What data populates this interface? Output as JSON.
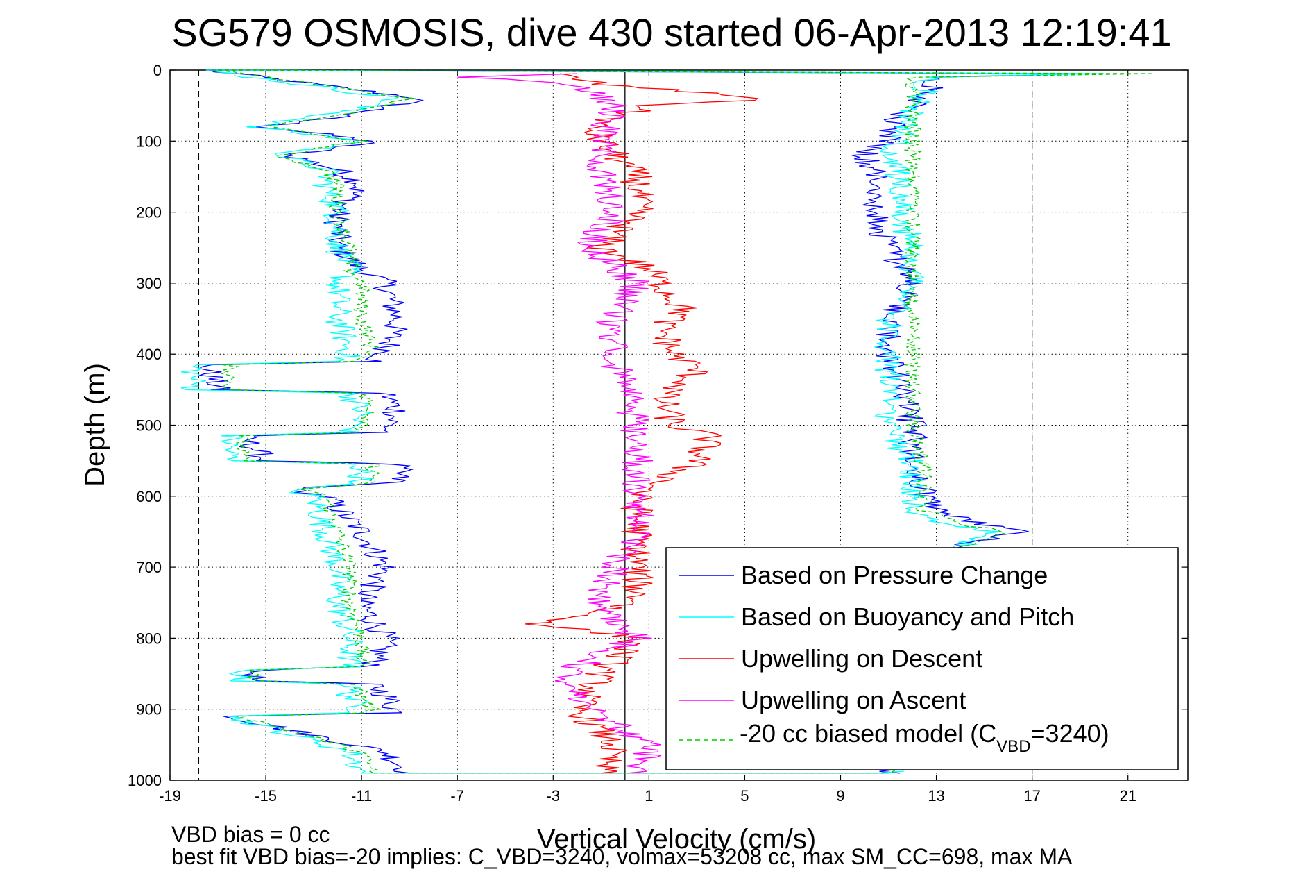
{
  "chart_data": {
    "type": "line",
    "title": "SG579 OSMOSIS, dive 430 started 06-Apr-2013 12:19:41",
    "xlabel": "Vertical Velocity (cm/s)",
    "ylabel": "Depth (m)",
    "xlim": [
      -19,
      23.5
    ],
    "ylim": [
      1000,
      0
    ],
    "y_reversed": true,
    "grid": "on (dotted)",
    "x_ticks": [
      "-19",
      "-15",
      "-11",
      "-7",
      "-3",
      "1",
      "5",
      "9",
      "13",
      "17",
      "21"
    ],
    "y_ticks": [
      "0",
      "100",
      "200",
      "300",
      "400",
      "500",
      "600",
      "700",
      "800",
      "900",
      "1000"
    ],
    "reference_lines": {
      "solid_vertical_x": 0,
      "dashed_vertical_x": [
        -17.8,
        17
      ]
    },
    "legend": {
      "placement": "bottom-right",
      "entries": [
        {
          "label": "Based on Pressure Change",
          "color": "#0000ff",
          "dash": "solid"
        },
        {
          "label": "Based on Buoyancy and Pitch",
          "color": "#00ffff",
          "dash": "solid"
        },
        {
          "label": "Upwelling on Descent",
          "color": "#ff0000",
          "dash": "solid"
        },
        {
          "label": "Upwelling on Ascent",
          "color": "#ff00ff",
          "dash": "solid"
        },
        {
          "label_prefix": "-20 cc biased model (C",
          "label_sub": "VBD",
          "label_suffix": "=3240)",
          "color": "#00cc00",
          "dash": "dashed"
        }
      ]
    },
    "series": [
      {
        "name": "Based on Pressure Change",
        "color": "#0000ff",
        "descent": {
          "depth": [
            0,
            20,
            40,
            60,
            80,
            100,
            120,
            140,
            160,
            200,
            250,
            280,
            300,
            350,
            400,
            410,
            415,
            450,
            455,
            480,
            510,
            515,
            550,
            555,
            580,
            590,
            600,
            650,
            700,
            750,
            800,
            840,
            845,
            860,
            865,
            880,
            905,
            910,
            960,
            990
          ],
          "v": [
            -17.5,
            -13,
            -8.5,
            -11,
            -15,
            -10.5,
            -14,
            -12,
            -11,
            -12,
            -12,
            -11,
            -10,
            -9.5,
            -10,
            -10.5,
            -17.5,
            -17,
            -10,
            -9.5,
            -10,
            -16,
            -15,
            -9.5,
            -9.5,
            -14,
            -12.5,
            -11,
            -10,
            -11,
            -10,
            -10.5,
            -15.5,
            -15.5,
            -10.5,
            -10,
            -9.5,
            -16.5,
            -10,
            -9
          ]
        },
        "ascent": {
          "depth": [
            990,
            950,
            900,
            850,
            800,
            750,
            700,
            670,
            650,
            640,
            620,
            600,
            560,
            500,
            450,
            400,
            350,
            300,
            250,
            200,
            150,
            120,
            100,
            60,
            30,
            10,
            5
          ],
          "v": [
            11,
            13,
            13,
            13,
            13,
            13,
            13,
            14,
            16.5,
            15,
            13,
            12.5,
            12,
            12,
            11.5,
            11,
            11,
            12,
            11,
            10.5,
            10.5,
            10,
            11,
            11.5,
            13,
            13,
            19
          ]
        }
      },
      {
        "name": "Based on Buoyancy and Pitch",
        "color": "#00ffff",
        "descent": {
          "depth": [
            0,
            20,
            40,
            60,
            80,
            100,
            120,
            140,
            160,
            200,
            250,
            280,
            300,
            350,
            400,
            410,
            415,
            450,
            455,
            480,
            510,
            515,
            550,
            555,
            580,
            590,
            600,
            650,
            700,
            750,
            800,
            840,
            845,
            860,
            865,
            880,
            905,
            910,
            960,
            990
          ],
          "v": [
            -17.5,
            -13.5,
            -9.5,
            -12,
            -15.5,
            -11,
            -14.5,
            -12.5,
            -12.5,
            -12,
            -12,
            -11.5,
            -12,
            -12,
            -11.5,
            -12,
            -18,
            -18,
            -11.5,
            -11,
            -11.5,
            -16.5,
            -16.5,
            -11,
            -11,
            -14,
            -13,
            -12.5,
            -12,
            -12,
            -11.5,
            -11.5,
            -16,
            -16,
            -11.5,
            -11.5,
            -11,
            -16.5,
            -11.5,
            -11
          ]
        },
        "ascent": {
          "depth": [
            990,
            950,
            900,
            850,
            800,
            750,
            700,
            670,
            650,
            640,
            620,
            600,
            560,
            500,
            450,
            400,
            350,
            300,
            250,
            200,
            150,
            120,
            100,
            60,
            30,
            10,
            5
          ],
          "v": [
            11,
            13,
            13,
            13,
            13,
            13,
            13,
            14,
            15.5,
            13.5,
            12,
            12,
            12,
            11,
            11,
            11,
            11,
            12,
            12,
            11.5,
            11.5,
            11,
            11.5,
            12,
            12.5,
            12.5,
            20
          ]
        }
      },
      {
        "name": "-20 cc biased model (CVBD=3240)",
        "color": "#00cc00",
        "dashed": true,
        "descent": {
          "depth": [
            0,
            20,
            40,
            60,
            80,
            100,
            120,
            140,
            160,
            200,
            250,
            280,
            300,
            350,
            400,
            410,
            415,
            450,
            455,
            480,
            510,
            515,
            550,
            555,
            580,
            590,
            600,
            650,
            700,
            750,
            800,
            840,
            845,
            860,
            865,
            880,
            905,
            910,
            960,
            990
          ],
          "v": [
            -17,
            -13,
            -9,
            -11.5,
            -15,
            -11,
            -14.5,
            -12.5,
            -12,
            -12,
            -11.5,
            -11.5,
            -11,
            -11,
            -10.5,
            -11.5,
            -16.5,
            -16.5,
            -11,
            -10.5,
            -11,
            -16,
            -16,
            -10.5,
            -10.5,
            -13.5,
            -12.5,
            -12,
            -11.5,
            -11.5,
            -11,
            -11,
            -15.5,
            -15.5,
            -11,
            -11,
            -10.5,
            -16,
            -11,
            -10.5
          ]
        },
        "ascent": {
          "depth": [
            990,
            950,
            900,
            850,
            800,
            750,
            700,
            670,
            650,
            640,
            620,
            600,
            560,
            500,
            450,
            400,
            350,
            300,
            250,
            200,
            150,
            120,
            100,
            60,
            30,
            10,
            5
          ],
          "v": [
            11,
            13,
            13,
            13,
            13,
            13,
            13,
            14,
            16,
            14,
            12.5,
            12.5,
            12.5,
            12,
            12,
            12,
            12,
            12,
            12,
            12,
            12,
            12,
            12,
            12,
            12,
            12,
            22
          ]
        }
      },
      {
        "name": "Upwelling on Descent",
        "color": "#ff0000",
        "depth": [
          5,
          20,
          40,
          50,
          80,
          100,
          150,
          200,
          250,
          280,
          300,
          340,
          360,
          400,
          420,
          440,
          460,
          500,
          515,
          550,
          600,
          650,
          700,
          750,
          780,
          800,
          850,
          900,
          950,
          990
        ],
        "v": [
          -3,
          -1,
          6,
          1,
          -1.5,
          -1,
          0.5,
          0.5,
          -1,
          1,
          1.5,
          2.5,
          1.5,
          2,
          3,
          2.5,
          1.5,
          2,
          3.5,
          3,
          0.5,
          0.5,
          0.5,
          0.5,
          -3.5,
          0.5,
          -1,
          -2,
          -0.5,
          -1
        ]
      },
      {
        "name": "Upwelling on Ascent",
        "color": "#ff00ff",
        "depth": [
          990,
          950,
          900,
          860,
          840,
          800,
          750,
          700,
          650,
          600,
          550,
          500,
          450,
          400,
          350,
          300,
          250,
          200,
          150,
          100,
          50,
          20,
          10,
          5
        ],
        "v": [
          0.5,
          1,
          -1.5,
          -2.5,
          -2,
          0.5,
          -1,
          -0.5,
          0.5,
          0.5,
          0.5,
          0.5,
          0,
          -0.5,
          -0.5,
          0.5,
          -1.5,
          -0.5,
          -1,
          -1,
          -0.5,
          -2,
          -6.5,
          -2
        ]
      }
    ]
  },
  "footer": {
    "line1": "VBD bias = 0 cc",
    "line2": "best fit VBD bias=-20 implies: C_VBD=3240, volmax=53208 cc, max SM_CC=698, max MA"
  }
}
